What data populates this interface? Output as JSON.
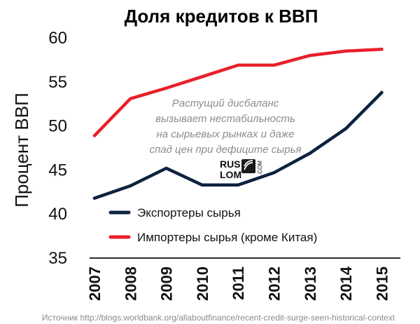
{
  "chart_data": {
    "type": "line",
    "title": "Доля кредитов к ВВП",
    "xlabel": "",
    "ylabel": "Процент ВВП",
    "ylim": [
      35,
      60
    ],
    "yticks": [
      35,
      40,
      45,
      50,
      55,
      60
    ],
    "x": [
      "2007",
      "2008",
      "2009",
      "2010",
      "2011",
      "2012",
      "2013",
      "2014",
      "2015"
    ],
    "series": [
      {
        "name": "Экспортеры сырья",
        "color": "#0d2240",
        "values": [
          41.8,
          43.2,
          45.2,
          43.3,
          43.3,
          44.7,
          46.9,
          49.7,
          53.8
        ]
      },
      {
        "name": "Импортеры сырья (кроме Китая)",
        "color": "#e8202a",
        "values": [
          48.9,
          53.1,
          54.3,
          55.6,
          56.9,
          56.9,
          58.0,
          58.5,
          58.7
        ]
      }
    ],
    "annotation": [
      "Растущий дисбаланс",
      "вызывает нестабильность",
      "на сырьевых рынках и даже",
      "спад цен при дефиците сырья"
    ],
    "grid": false,
    "legend_position": "bottom-left"
  },
  "logo": {
    "line1": "RUS",
    "line2": "LOM",
    "suffix": ".COM"
  },
  "source": "Источник http://blogs.worldbank.org/allaboutfinance/recent-credit-surge-seen-historical-context"
}
